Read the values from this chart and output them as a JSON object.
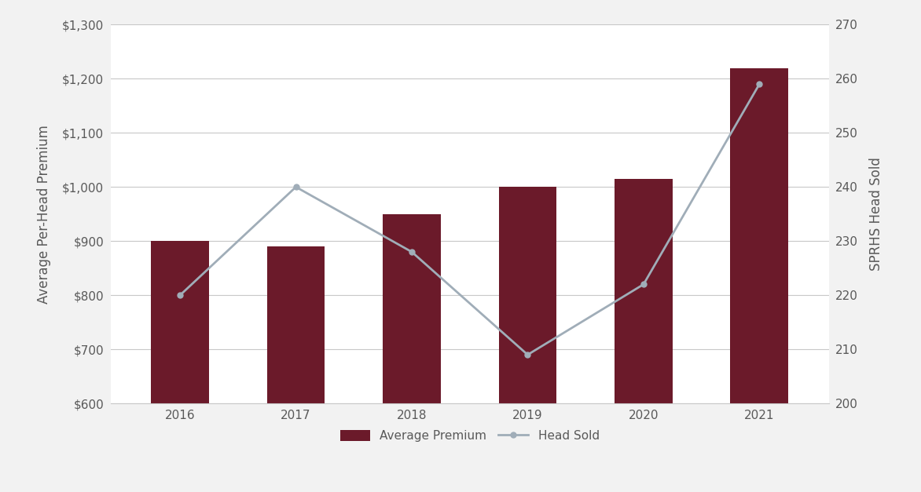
{
  "years": [
    2016,
    2017,
    2018,
    2019,
    2020,
    2021
  ],
  "avg_premium": [
    900,
    890,
    950,
    1000,
    1015,
    1220
  ],
  "head_sold": [
    220,
    240,
    228,
    209,
    222,
    259
  ],
  "bar_color": "#6B1A2A",
  "line_color": "#A0ADB8",
  "ylabel_left": "Average Per-Head Premium",
  "ylabel_right": "SPRHS Head Sold",
  "ylim_left": [
    600,
    1300
  ],
  "ylim_right": [
    200,
    270
  ],
  "yticks_left": [
    600,
    700,
    800,
    900,
    1000,
    1100,
    1200,
    1300
  ],
  "yticks_right": [
    200,
    210,
    220,
    230,
    240,
    250,
    260,
    270
  ],
  "legend_labels": [
    "Average Premium",
    "Head Sold"
  ],
  "background_color": "#FFFFFF",
  "figure_bg": "#F2F2F2",
  "plot_bg": "#FFFFFF",
  "grid_color": "#C8C8C8",
  "tick_color": "#595959",
  "label_color": "#595959",
  "bar_width": 0.5,
  "line_width": 2.0,
  "line_marker": "o",
  "marker_size": 5
}
